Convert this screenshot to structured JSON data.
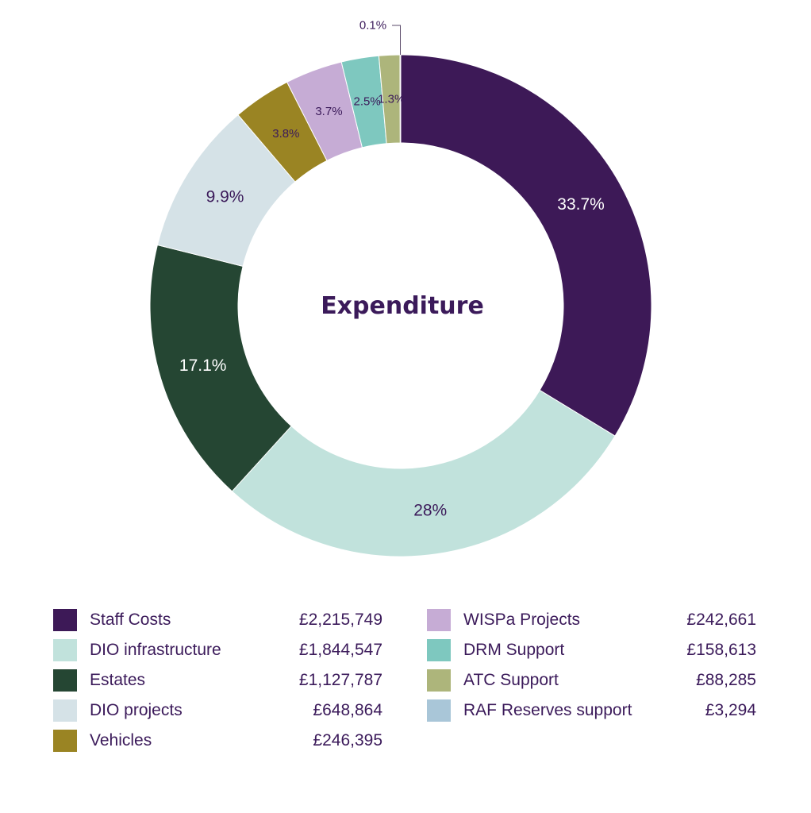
{
  "chart_data": {
    "type": "pie",
    "title": "Expenditure",
    "slices": [
      {
        "label": "Staff Costs",
        "value": 2215749,
        "display_value": "£2,215,749",
        "percent_label": "33.7%",
        "color": "#3d1957"
      },
      {
        "label": "DIO infrastructure",
        "value": 1844547,
        "display_value": "£1,844,547",
        "percent_label": "28%",
        "color": "#c1e2dc"
      },
      {
        "label": "Estates",
        "value": 1127787,
        "display_value": "£1,127,787",
        "percent_label": "17.1%",
        "color": "#254633"
      },
      {
        "label": "DIO projects",
        "value": 648864,
        "display_value": "£648,864",
        "percent_label": "9.9%",
        "color": "#d5e2e7"
      },
      {
        "label": "Vehicles",
        "value": 246395,
        "display_value": "£246,395",
        "percent_label": "3.8%",
        "color": "#9a8423"
      },
      {
        "label": "WISPa Projects",
        "value": 242661,
        "display_value": "£242,661",
        "percent_label": "3.7%",
        "color": "#c6acd5"
      },
      {
        "label": "DRM Support",
        "value": 158613,
        "display_value": "£158,613",
        "percent_label": "2.5%",
        "color": "#7ec8bf"
      },
      {
        "label": "ATC Support",
        "value": 88285,
        "display_value": "£88,285",
        "percent_label": "1.3%",
        "color": "#adb57b"
      },
      {
        "label": "RAF Reserves support",
        "value": 3294,
        "display_value": "£3,294",
        "percent_label": "0.1%",
        "color": "#a9c6d8"
      }
    ]
  },
  "colors": {
    "text": "#3b1a5a",
    "background": "#ffffff"
  }
}
